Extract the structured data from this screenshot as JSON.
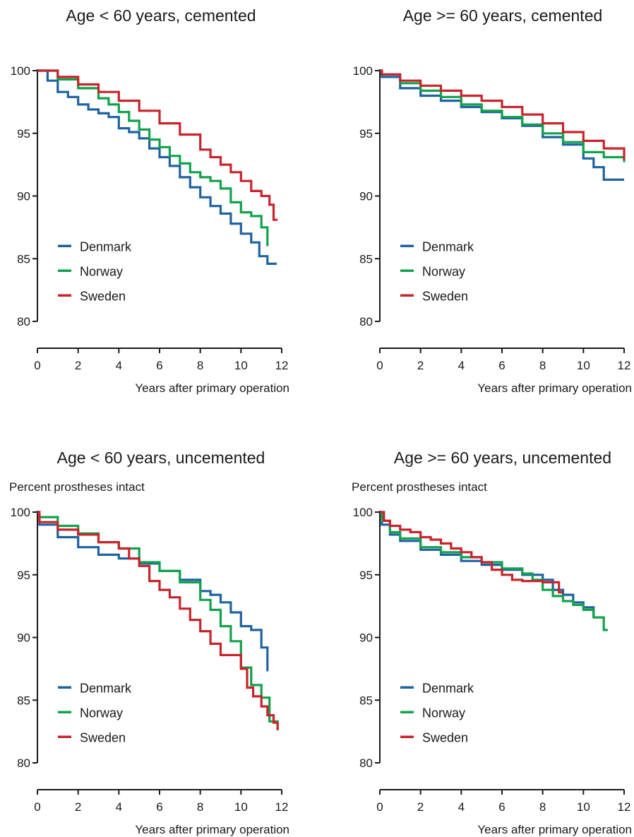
{
  "colors": {
    "Denmark": "#1f62a0",
    "Norway": "#12a24c",
    "Sweden": "#c8242c",
    "axis": "#1a1a1a"
  },
  "chart_data": [
    {
      "type": "line",
      "title": "Age < 60 years, cemented",
      "xlabel": "Years after primary operation",
      "ylabel": "",
      "xlim": [
        0,
        12
      ],
      "ylim": [
        80,
        100
      ],
      "xticks": [
        "0",
        "2",
        "4",
        "6",
        "8",
        "10",
        "12"
      ],
      "yticks": [
        "80",
        "85",
        "90",
        "95",
        "100"
      ],
      "legend": [
        "Denmark",
        "Norway",
        "Sweden"
      ],
      "series": [
        {
          "name": "Denmark",
          "x": [
            0,
            0.5,
            1,
            1.5,
            2,
            2.5,
            3,
            3.5,
            4,
            4.5,
            5,
            5.5,
            6,
            6.5,
            7,
            7.5,
            8,
            8.5,
            9,
            9.5,
            10,
            10.5,
            10.9,
            11.3,
            11.7
          ],
          "y": [
            100,
            99.2,
            98.3,
            97.9,
            97.3,
            96.9,
            96.6,
            96.3,
            95.4,
            95.1,
            94.6,
            93.8,
            93.1,
            92.4,
            91.5,
            90.7,
            89.9,
            89.2,
            88.6,
            87.8,
            87.0,
            86.3,
            85.2,
            84.6,
            84.5
          ]
        },
        {
          "name": "Norway",
          "x": [
            0,
            1,
            2,
            3,
            3.5,
            4,
            4.5,
            5,
            5.5,
            6,
            6.5,
            7,
            7.5,
            8,
            8.5,
            9,
            9.5,
            10,
            10.5,
            11,
            11.3
          ],
          "y": [
            100,
            99.3,
            98.6,
            97.8,
            97.3,
            96.7,
            96.0,
            95.3,
            94.5,
            93.9,
            93.2,
            92.6,
            91.9,
            91.5,
            91.2,
            90.6,
            89.5,
            88.7,
            88.4,
            87.5,
            86.0
          ]
        },
        {
          "name": "Sweden",
          "x": [
            0,
            1,
            2,
            3,
            4,
            5,
            6,
            7,
            8,
            8.5,
            9,
            9.5,
            10,
            10.5,
            11,
            11.4,
            11.6,
            11.8
          ],
          "y": [
            100,
            99.5,
            98.9,
            98.3,
            97.6,
            96.8,
            95.8,
            94.9,
            93.7,
            93.1,
            92.5,
            91.9,
            91.2,
            90.4,
            90.0,
            89.3,
            88.1,
            88.1
          ]
        }
      ]
    },
    {
      "type": "line",
      "title": "Age >= 60 years, cemented",
      "xlabel": "Years after primary operation",
      "ylabel": "",
      "xlim": [
        0,
        12
      ],
      "ylim": [
        80,
        100
      ],
      "xticks": [
        "0",
        "2",
        "4",
        "6",
        "8",
        "10",
        "12"
      ],
      "yticks": [
        "80",
        "85",
        "90",
        "95",
        "100"
      ],
      "legend": [
        "Denmark",
        "Norway",
        "Sweden"
      ],
      "series": [
        {
          "name": "Denmark",
          "x": [
            0,
            0.1,
            1,
            2,
            3,
            4,
            5,
            6,
            7,
            8,
            9,
            10,
            10.5,
            11,
            12
          ],
          "y": [
            100,
            99.5,
            98.6,
            98.0,
            97.6,
            97.1,
            96.7,
            96.2,
            95.6,
            94.7,
            94.1,
            93.0,
            92.3,
            91.3,
            91.3
          ]
        },
        {
          "name": "Norway",
          "x": [
            0,
            0.1,
            1,
            2,
            3,
            4,
            5,
            6,
            7,
            8,
            9,
            10,
            11,
            12
          ],
          "y": [
            100,
            99.7,
            99.0,
            98.4,
            97.9,
            97.3,
            96.8,
            96.3,
            95.7,
            95.0,
            94.3,
            93.5,
            93.1,
            92.7
          ]
        },
        {
          "name": "Sweden",
          "x": [
            0,
            0.1,
            1,
            2,
            3,
            4,
            5,
            6,
            7,
            8,
            9,
            10,
            11,
            12
          ],
          "y": [
            100,
            99.7,
            99.2,
            98.8,
            98.4,
            98.0,
            97.6,
            97.1,
            96.5,
            95.8,
            95.1,
            94.4,
            93.8,
            92.9
          ]
        }
      ]
    },
    {
      "type": "line",
      "title": "Age < 60 years, uncemented",
      "xlabel": "Years after primary operation",
      "ylabel": "Percent prostheses intact",
      "xlim": [
        0,
        12
      ],
      "ylim": [
        80,
        100
      ],
      "xticks": [
        "0",
        "2",
        "4",
        "6",
        "8",
        "10",
        "12"
      ],
      "yticks": [
        "80",
        "85",
        "90",
        "95",
        "100"
      ],
      "legend": [
        "Denmark",
        "Norway",
        "Sweden"
      ],
      "series": [
        {
          "name": "Denmark",
          "x": [
            0,
            0.1,
            1,
            2,
            3,
            4,
            5,
            6,
            7,
            8,
            8.5,
            9,
            9.5,
            10,
            10.5,
            11,
            11.3
          ],
          "y": [
            100,
            99.0,
            98.0,
            97.2,
            96.6,
            96.3,
            95.9,
            95.3,
            94.6,
            93.7,
            93.4,
            92.8,
            92.0,
            90.9,
            90.6,
            89.2,
            87.3
          ]
        },
        {
          "name": "Norway",
          "x": [
            0,
            0.1,
            1,
            2,
            3,
            4,
            5,
            6,
            7,
            8,
            8.5,
            9,
            9.5,
            10,
            10.5,
            11,
            11.4,
            11.8
          ],
          "y": [
            100,
            99.6,
            98.9,
            98.3,
            97.6,
            97.1,
            96.0,
            95.3,
            94.4,
            93.0,
            92.2,
            90.9,
            89.7,
            87.6,
            86.2,
            85.2,
            83.3,
            82.6
          ]
        },
        {
          "name": "Sweden",
          "x": [
            0,
            0.1,
            1,
            2,
            3,
            4,
            4.5,
            5,
            5.5,
            6,
            6.5,
            7,
            7.5,
            8,
            8.5,
            9,
            9.5,
            10,
            10.3,
            10.6,
            11,
            11.3,
            11.6,
            11.8
          ],
          "y": [
            100,
            99.2,
            98.6,
            98.2,
            97.6,
            97.1,
            96.3,
            95.7,
            94.5,
            93.8,
            93.2,
            92.3,
            91.4,
            90.5,
            89.5,
            88.6,
            88.6,
            87.5,
            86.0,
            85.3,
            84.5,
            83.8,
            83.2,
            82.6
          ]
        }
      ]
    },
    {
      "type": "line",
      "title": "Age >= 60 years, uncemented",
      "xlabel": "Years after primary operation",
      "ylabel": "Percent prostheses intact",
      "xlim": [
        0,
        12
      ],
      "ylim": [
        80,
        100
      ],
      "xticks": [
        "0",
        "2",
        "4",
        "6",
        "8",
        "10",
        "12"
      ],
      "yticks": [
        "80",
        "85",
        "90",
        "95",
        "100"
      ],
      "legend": [
        "Denmark",
        "Norway",
        "Sweden"
      ],
      "series": [
        {
          "name": "Denmark",
          "x": [
            0,
            0.1,
            0.5,
            1,
            2,
            3,
            4,
            5,
            6,
            7,
            8,
            8.5,
            9,
            9.5,
            10,
            10.5
          ],
          "y": [
            100,
            99.0,
            98.2,
            97.7,
            97.0,
            96.6,
            96.1,
            95.8,
            95.4,
            95.0,
            94.6,
            93.8,
            93.4,
            92.8,
            92.4,
            91.6
          ]
        },
        {
          "name": "Norway",
          "x": [
            0,
            0.1,
            0.5,
            1,
            2,
            3,
            4,
            5,
            6,
            7,
            7.5,
            8,
            8.5,
            9,
            9.5,
            10,
            10.5,
            11,
            11.2
          ],
          "y": [
            100,
            99.3,
            98.4,
            97.9,
            97.2,
            96.8,
            96.4,
            96.0,
            95.5,
            95.1,
            94.6,
            93.8,
            93.3,
            92.9,
            92.6,
            92.2,
            91.6,
            90.6,
            90.6
          ]
        },
        {
          "name": "Sweden",
          "x": [
            0,
            0.2,
            0.5,
            1,
            1.5,
            2,
            2.5,
            3,
            3.5,
            4,
            4.5,
            5,
            5.5,
            6,
            6.5,
            7,
            7.5,
            8,
            8.5,
            8.8,
            9
          ],
          "y": [
            100,
            99.3,
            98.9,
            98.6,
            98.4,
            98.0,
            97.8,
            97.5,
            97.1,
            96.8,
            96.4,
            96.0,
            95.4,
            95.0,
            94.6,
            94.5,
            94.5,
            94.4,
            94.4,
            93.6,
            93.6
          ]
        }
      ]
    }
  ]
}
